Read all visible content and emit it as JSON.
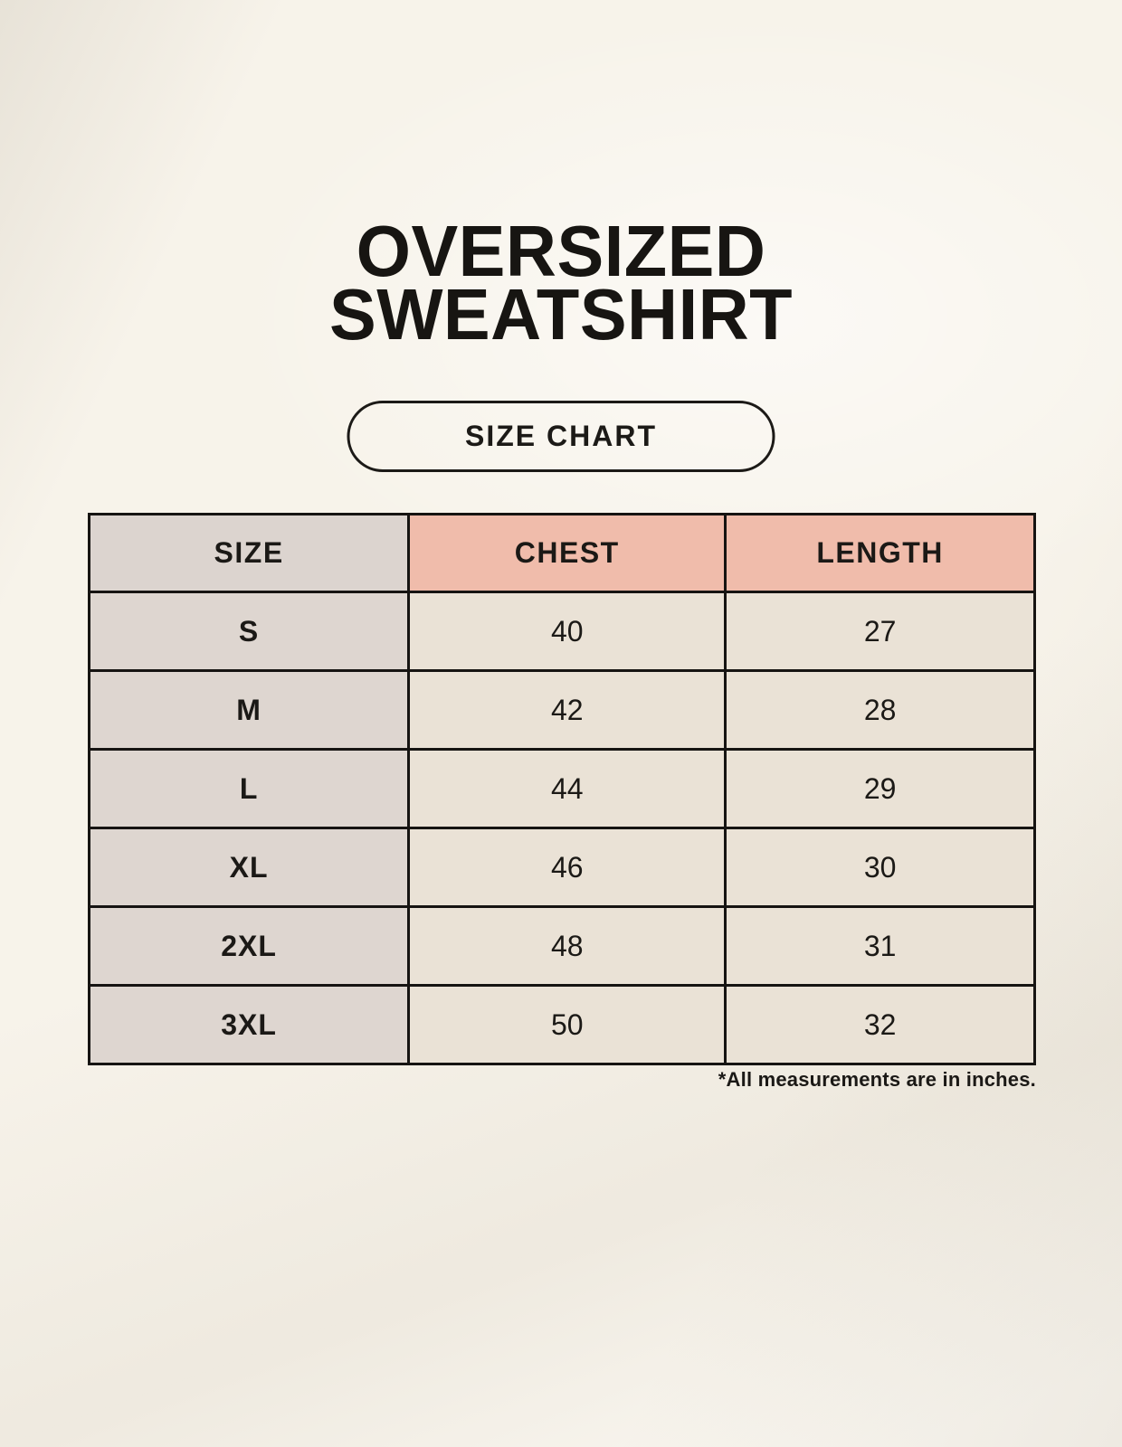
{
  "header": {
    "title_line1": "OVERSIZED",
    "title_line2": "SWEATSHIRT",
    "button_label": "SIZE CHART"
  },
  "chart_data": {
    "type": "table",
    "title": "OVERSIZED SWEATSHIRT SIZE CHART",
    "columns": [
      "SIZE",
      "CHEST",
      "LENGTH"
    ],
    "rows": [
      [
        "S",
        40,
        27
      ],
      [
        "M",
        42,
        28
      ],
      [
        "L",
        44,
        29
      ],
      [
        "XL",
        46,
        30
      ],
      [
        "2XL",
        48,
        31
      ],
      [
        "3XL",
        50,
        32
      ]
    ],
    "units": "inches"
  },
  "footer": {
    "note": "*All measurements are in inches."
  },
  "colors": {
    "page_background": "#f7f3ea",
    "size_header_bg": "#dcd4cf",
    "measure_header_bg": "#f0bcab",
    "size_column_bg": "#ded6d0",
    "value_cell_bg": "#eae2d6",
    "border": "#161412",
    "text": "#1b1916"
  }
}
